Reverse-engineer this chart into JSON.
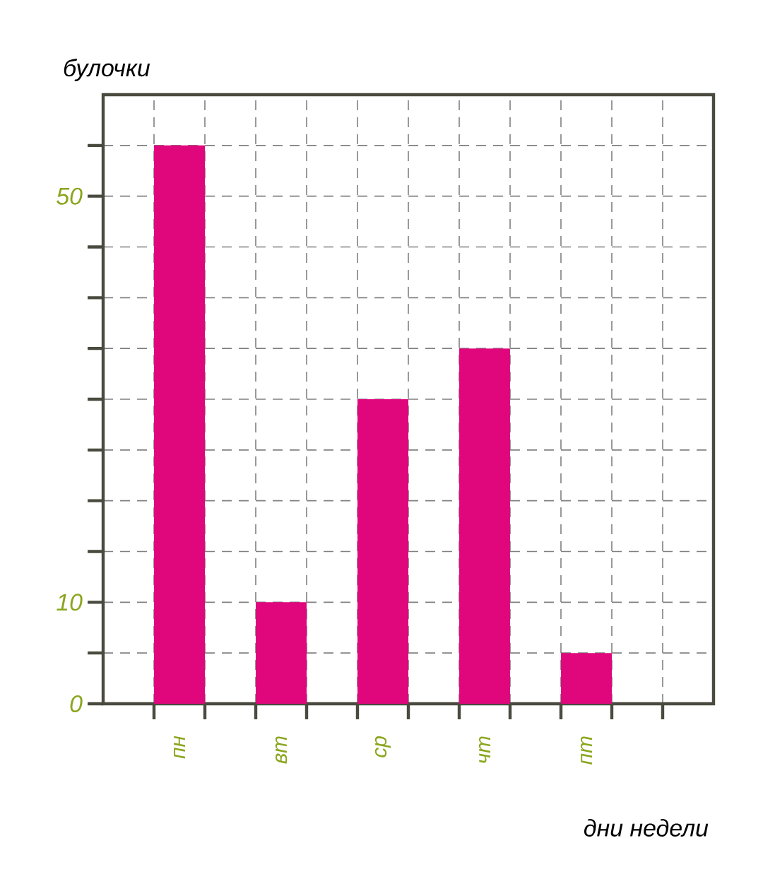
{
  "chart_data": {
    "type": "bar",
    "xlabel": "дни недели",
    "ylabel": "булочки",
    "categories": [
      "пн",
      "вт",
      "ср",
      "чт",
      "пт"
    ],
    "values": [
      55,
      10,
      30,
      35,
      5
    ],
    "color": "#e0077d",
    "ylim": [
      0,
      60
    ],
    "yticks": [
      0,
      {
        "value": 5,
        "label": null
      },
      10,
      {
        "value": 15,
        "label": null
      },
      {
        "value": 20,
        "label": null
      },
      {
        "value": 25,
        "label": null
      },
      {
        "value": 30,
        "label": null
      },
      {
        "value": 35,
        "label": null
      },
      {
        "value": 40,
        "label": null
      },
      {
        "value": 45,
        "label": null
      },
      50,
      {
        "value": 55,
        "label": null
      }
    ],
    "grid": true
  }
}
